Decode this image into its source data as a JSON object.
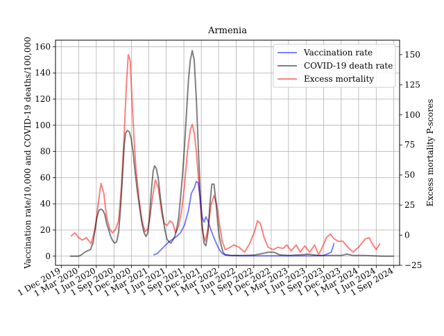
{
  "chart_data": {
    "type": "line",
    "title": "Armenia",
    "ylabel_left": "Vaccination rate/10,000 and COVID-19 deaths/100,000",
    "ylabel_right": "Excess mortality P-scores",
    "ylim_left": [
      -7,
      165
    ],
    "ylim_right": [
      -25,
      162
    ],
    "yticks_left": [
      0,
      20,
      40,
      60,
      80,
      100,
      120,
      140,
      160
    ],
    "yticks_right": [
      -25,
      0,
      25,
      50,
      75,
      100,
      125,
      150
    ],
    "grid": true,
    "legend_position": "top-right",
    "x_range": [
      "2019-11-01",
      "2024-10-01"
    ],
    "x_ticks": [
      {
        "date": "2019-12-01",
        "label": "1 Dec 2019"
      },
      {
        "date": "2020-03-01",
        "label": "1 Mar 2020"
      },
      {
        "date": "2020-06-01",
        "label": "1 Jun 2020"
      },
      {
        "date": "2020-09-01",
        "label": "1 Sep 2020"
      },
      {
        "date": "2020-12-01",
        "label": "1 Dec 2020"
      },
      {
        "date": "2021-03-01",
        "label": "1 Mar 2021"
      },
      {
        "date": "2021-06-01",
        "label": "1 Jun 2021"
      },
      {
        "date": "2021-09-01",
        "label": "1 Sep 2021"
      },
      {
        "date": "2021-12-01",
        "label": "1 Dec 2021"
      },
      {
        "date": "2022-03-01",
        "label": "1 Mar 2022"
      },
      {
        "date": "2022-06-01",
        "label": "1 Jun 2022"
      },
      {
        "date": "2022-09-01",
        "label": "1 Sep 2022"
      },
      {
        "date": "2022-12-01",
        "label": "1 Dec 2022"
      },
      {
        "date": "2023-03-01",
        "label": "1 Mar 2023"
      },
      {
        "date": "2023-06-01",
        "label": "1 Jun 2023"
      },
      {
        "date": "2023-09-01",
        "label": "1 Sep 2023"
      },
      {
        "date": "2023-12-01",
        "label": "1 Dec 2023"
      },
      {
        "date": "2024-03-01",
        "label": "1 Mar 2024"
      },
      {
        "date": "2024-06-01",
        "label": "1 Jun 2024"
      },
      {
        "date": "2024-09-01",
        "label": "1 Sep 2024"
      }
    ],
    "series": [
      {
        "name": "Vaccination rate",
        "axis": "left",
        "color": "#0000ff",
        "points": [
          [
            "2021-03-26",
            1
          ],
          [
            "2021-04-15",
            2
          ],
          [
            "2021-05-05",
            5
          ],
          [
            "2021-05-25",
            8
          ],
          [
            "2021-06-15",
            11
          ],
          [
            "2021-07-05",
            13
          ],
          [
            "2021-07-25",
            15
          ],
          [
            "2021-08-15",
            18
          ],
          [
            "2021-09-05",
            24
          ],
          [
            "2021-09-25",
            35
          ],
          [
            "2021-10-10",
            48
          ],
          [
            "2021-10-25",
            52
          ],
          [
            "2021-11-05",
            57
          ],
          [
            "2021-11-15",
            56
          ],
          [
            "2021-11-25",
            45
          ],
          [
            "2021-12-05",
            30
          ],
          [
            "2021-12-15",
            26
          ],
          [
            "2021-12-25",
            30
          ],
          [
            "2022-01-05",
            27
          ],
          [
            "2022-01-20",
            20
          ],
          [
            "2022-02-05",
            14
          ],
          [
            "2022-02-20",
            9
          ],
          [
            "2022-03-05",
            5
          ],
          [
            "2022-03-20",
            2
          ],
          [
            "2022-04-05",
            1
          ],
          [
            "2022-05-01",
            0.5
          ],
          [
            "2022-07-01",
            0.3
          ],
          [
            "2022-10-01",
            0.3
          ],
          [
            "2023-01-01",
            0.3
          ],
          [
            "2023-04-01",
            0.3
          ],
          [
            "2023-07-01",
            0.3
          ],
          [
            "2023-09-01",
            0.5
          ],
          [
            "2023-10-10",
            3
          ],
          [
            "2023-10-25",
            10
          ]
        ]
      },
      {
        "name": "COVID-19 death rate",
        "axis": "left",
        "color": "#000000",
        "points": [
          [
            "2020-01-15",
            0
          ],
          [
            "2020-02-15",
            0
          ],
          [
            "2020-03-01",
            0
          ],
          [
            "2020-03-15",
            1
          ],
          [
            "2020-04-01",
            3
          ],
          [
            "2020-04-15",
            4
          ],
          [
            "2020-05-01",
            5
          ],
          [
            "2020-05-15",
            10
          ],
          [
            "2020-05-25",
            20
          ],
          [
            "2020-06-05",
            30
          ],
          [
            "2020-06-15",
            35
          ],
          [
            "2020-06-25",
            36
          ],
          [
            "2020-07-05",
            35
          ],
          [
            "2020-07-15",
            32
          ],
          [
            "2020-07-25",
            25
          ],
          [
            "2020-08-05",
            20
          ],
          [
            "2020-08-15",
            15
          ],
          [
            "2020-08-25",
            12
          ],
          [
            "2020-09-05",
            10
          ],
          [
            "2020-09-15",
            11
          ],
          [
            "2020-09-25",
            18
          ],
          [
            "2020-10-05",
            35
          ],
          [
            "2020-10-15",
            60
          ],
          [
            "2020-10-25",
            85
          ],
          [
            "2020-11-01",
            94
          ],
          [
            "2020-11-10",
            96
          ],
          [
            "2020-11-20",
            95
          ],
          [
            "2020-11-30",
            90
          ],
          [
            "2020-12-10",
            80
          ],
          [
            "2020-12-20",
            65
          ],
          [
            "2021-01-01",
            50
          ],
          [
            "2021-01-15",
            35
          ],
          [
            "2021-01-25",
            25
          ],
          [
            "2021-02-05",
            18
          ],
          [
            "2021-02-15",
            15
          ],
          [
            "2021-02-25",
            18
          ],
          [
            "2021-03-05",
            28
          ],
          [
            "2021-03-15",
            50
          ],
          [
            "2021-03-25",
            65
          ],
          [
            "2021-04-01",
            69
          ],
          [
            "2021-04-10",
            67
          ],
          [
            "2021-04-20",
            60
          ],
          [
            "2021-05-01",
            45
          ],
          [
            "2021-05-15",
            30
          ],
          [
            "2021-05-25",
            20
          ],
          [
            "2021-06-05",
            13
          ],
          [
            "2021-06-15",
            11
          ],
          [
            "2021-06-25",
            10
          ],
          [
            "2021-07-05",
            12
          ],
          [
            "2021-07-15",
            15
          ],
          [
            "2021-07-25",
            20
          ],
          [
            "2021-08-05",
            30
          ],
          [
            "2021-08-15",
            45
          ],
          [
            "2021-08-25",
            62
          ],
          [
            "2021-09-05",
            85
          ],
          [
            "2021-09-15",
            110
          ],
          [
            "2021-09-25",
            135
          ],
          [
            "2021-10-05",
            150
          ],
          [
            "2021-10-15",
            157
          ],
          [
            "2021-10-25",
            150
          ],
          [
            "2021-11-05",
            120
          ],
          [
            "2021-11-15",
            85
          ],
          [
            "2021-11-25",
            50
          ],
          [
            "2021-12-05",
            25
          ],
          [
            "2021-12-15",
            10
          ],
          [
            "2021-12-25",
            8
          ],
          [
            "2022-01-05",
            18
          ],
          [
            "2022-01-15",
            40
          ],
          [
            "2022-01-25",
            55
          ],
          [
            "2022-02-05",
            55
          ],
          [
            "2022-02-15",
            42
          ],
          [
            "2022-02-25",
            25
          ],
          [
            "2022-03-05",
            15
          ],
          [
            "2022-03-15",
            8
          ],
          [
            "2022-03-25",
            3
          ],
          [
            "2022-04-05",
            1
          ],
          [
            "2022-05-01",
            0.5
          ],
          [
            "2022-07-01",
            0.5
          ],
          [
            "2022-09-01",
            0.8
          ],
          [
            "2022-10-15",
            2
          ],
          [
            "2022-11-15",
            3
          ],
          [
            "2022-12-15",
            3
          ],
          [
            "2023-01-15",
            1
          ],
          [
            "2023-03-01",
            0.5
          ],
          [
            "2023-05-01",
            1
          ],
          [
            "2023-06-15",
            1.5
          ],
          [
            "2023-08-01",
            0.5
          ],
          [
            "2023-10-01",
            0.5
          ],
          [
            "2023-12-01",
            0.5
          ],
          [
            "2024-01-01",
            1.5
          ],
          [
            "2024-02-01",
            0.5
          ],
          [
            "2024-04-01",
            0.5
          ],
          [
            "2024-07-01",
            0
          ],
          [
            "2024-09-01",
            0
          ]
        ]
      },
      {
        "name": "Excess mortality",
        "axis": "right",
        "color": "#ff0000",
        "points": [
          [
            "2020-01-20",
            -1
          ],
          [
            "2020-02-10",
            2
          ],
          [
            "2020-03-01",
            -2
          ],
          [
            "2020-03-20",
            -4
          ],
          [
            "2020-04-10",
            -2
          ],
          [
            "2020-05-05",
            -7
          ],
          [
            "2020-05-25",
            5
          ],
          [
            "2020-06-10",
            25
          ],
          [
            "2020-06-25",
            43
          ],
          [
            "2020-07-10",
            35
          ],
          [
            "2020-07-25",
            15
          ],
          [
            "2020-08-10",
            5
          ],
          [
            "2020-08-25",
            2
          ],
          [
            "2020-09-10",
            5
          ],
          [
            "2020-09-25",
            12
          ],
          [
            "2020-10-10",
            40
          ],
          [
            "2020-10-25",
            85
          ],
          [
            "2020-11-05",
            125
          ],
          [
            "2020-11-15",
            150
          ],
          [
            "2020-11-25",
            145
          ],
          [
            "2020-12-05",
            110
          ],
          [
            "2020-12-15",
            80
          ],
          [
            "2020-12-25",
            55
          ],
          [
            "2021-01-10",
            30
          ],
          [
            "2021-01-25",
            12
          ],
          [
            "2021-02-10",
            3
          ],
          [
            "2021-02-25",
            5
          ],
          [
            "2021-03-10",
            18
          ],
          [
            "2021-03-25",
            35
          ],
          [
            "2021-04-05",
            46
          ],
          [
            "2021-04-20",
            40
          ],
          [
            "2021-05-05",
            22
          ],
          [
            "2021-05-20",
            10
          ],
          [
            "2021-06-05",
            8
          ],
          [
            "2021-06-20",
            12
          ],
          [
            "2021-07-05",
            10
          ],
          [
            "2021-07-20",
            2
          ],
          [
            "2021-08-05",
            8
          ],
          [
            "2021-08-20",
            20
          ],
          [
            "2021-09-05",
            42
          ],
          [
            "2021-09-20",
            70
          ],
          [
            "2021-10-05",
            88
          ],
          [
            "2021-10-15",
            92
          ],
          [
            "2021-10-25",
            85
          ],
          [
            "2021-11-05",
            70
          ],
          [
            "2021-11-15",
            50
          ],
          [
            "2021-11-25",
            28
          ],
          [
            "2021-12-05",
            5
          ],
          [
            "2021-12-20",
            -5
          ],
          [
            "2022-01-05",
            5
          ],
          [
            "2022-01-20",
            25
          ],
          [
            "2022-02-05",
            33
          ],
          [
            "2022-02-20",
            25
          ],
          [
            "2022-03-05",
            10
          ],
          [
            "2022-03-20",
            -5
          ],
          [
            "2022-04-05",
            -12
          ],
          [
            "2022-05-01",
            -10
          ],
          [
            "2022-05-20",
            -8
          ],
          [
            "2022-06-15",
            -10
          ],
          [
            "2022-07-15",
            -14
          ],
          [
            "2022-08-10",
            -7
          ],
          [
            "2022-09-05",
            3
          ],
          [
            "2022-09-20",
            12
          ],
          [
            "2022-10-05",
            10
          ],
          [
            "2022-10-25",
            -2
          ],
          [
            "2022-11-15",
            -10
          ],
          [
            "2022-12-10",
            -12
          ],
          [
            "2023-01-05",
            -10
          ],
          [
            "2023-02-01",
            -11
          ],
          [
            "2023-02-20",
            -8
          ],
          [
            "2023-03-15",
            -13
          ],
          [
            "2023-04-10",
            -8
          ],
          [
            "2023-05-01",
            -14
          ],
          [
            "2023-05-25",
            -9
          ],
          [
            "2023-06-20",
            -14
          ],
          [
            "2023-07-15",
            -8
          ],
          [
            "2023-08-05",
            -16
          ],
          [
            "2023-08-25",
            -10
          ],
          [
            "2023-09-15",
            -2
          ],
          [
            "2023-10-05",
            1
          ],
          [
            "2023-10-25",
            -3
          ],
          [
            "2023-11-15",
            -5
          ],
          [
            "2023-12-10",
            -5
          ],
          [
            "2024-01-05",
            -10
          ],
          [
            "2024-02-01",
            -14
          ],
          [
            "2024-03-01",
            -10
          ],
          [
            "2024-04-05",
            -3
          ],
          [
            "2024-04-25",
            -2
          ],
          [
            "2024-05-15",
            -8
          ],
          [
            "2024-06-01",
            -12
          ],
          [
            "2024-06-20",
            -7
          ]
        ]
      }
    ]
  }
}
